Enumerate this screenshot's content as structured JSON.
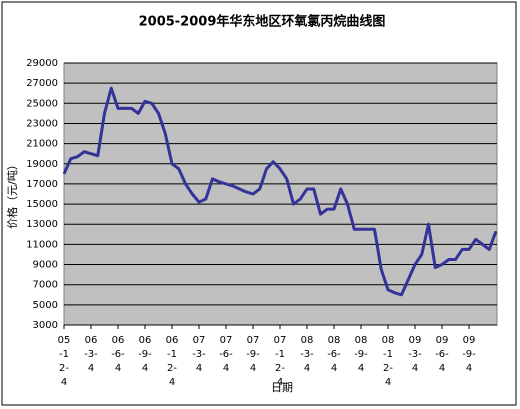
{
  "chart_data": {
    "type": "line",
    "title": "2005-2009年华东地区环氧氯丙烷曲线图",
    "y_label": "价格（元/吨）",
    "x_label": "日期",
    "categories": [
      "05-12-4",
      null,
      null,
      null,
      "06-3-4",
      null,
      null,
      null,
      "06-6-4",
      null,
      null,
      null,
      "06-9-4",
      null,
      null,
      null,
      "06-12-4",
      null,
      null,
      null,
      "07-3-4",
      null,
      null,
      null,
      "07-6-4",
      null,
      null,
      null,
      "07-9-4",
      null,
      null,
      null,
      "07-12-4",
      null,
      null,
      null,
      "08-3-4",
      null,
      null,
      null,
      "08-6-4",
      null,
      null,
      null,
      "08-9-4",
      null,
      null,
      null,
      "08-12-4",
      null,
      null,
      null,
      "09-3-4",
      null,
      null,
      null,
      "09-6-4",
      null,
      null,
      null,
      "09-9-4",
      null,
      null,
      null,
      null
    ],
    "series": [
      {
        "color": "#333399",
        "values": [
          18000,
          19500,
          19700,
          20200,
          20000,
          19800,
          24000,
          26500,
          24500,
          24500,
          24500,
          24000,
          25200,
          25000,
          24000,
          22000,
          19000,
          18500,
          17000,
          16000,
          15200,
          15500,
          17500,
          17200,
          17000,
          16800,
          16500,
          16200,
          16000,
          16500,
          18500,
          19200,
          18500,
          17500,
          15000,
          15500,
          16500,
          16500,
          14000,
          14500,
          14500,
          16500,
          15000,
          12500,
          12500,
          12500,
          12500,
          8500,
          6500,
          6200,
          6000,
          7500,
          9000,
          10000,
          13000,
          8700,
          9000,
          9500,
          9500,
          10500,
          10500,
          11500,
          11000,
          10500,
          12300
        ]
      }
    ],
    "ylim": [
      3000,
      29000
    ],
    "yticks": [
      3000,
      5000,
      7000,
      9000,
      11000,
      13000,
      15000,
      17000,
      19000,
      21000,
      23000,
      25000,
      27000,
      29000
    ],
    "grid": true
  }
}
